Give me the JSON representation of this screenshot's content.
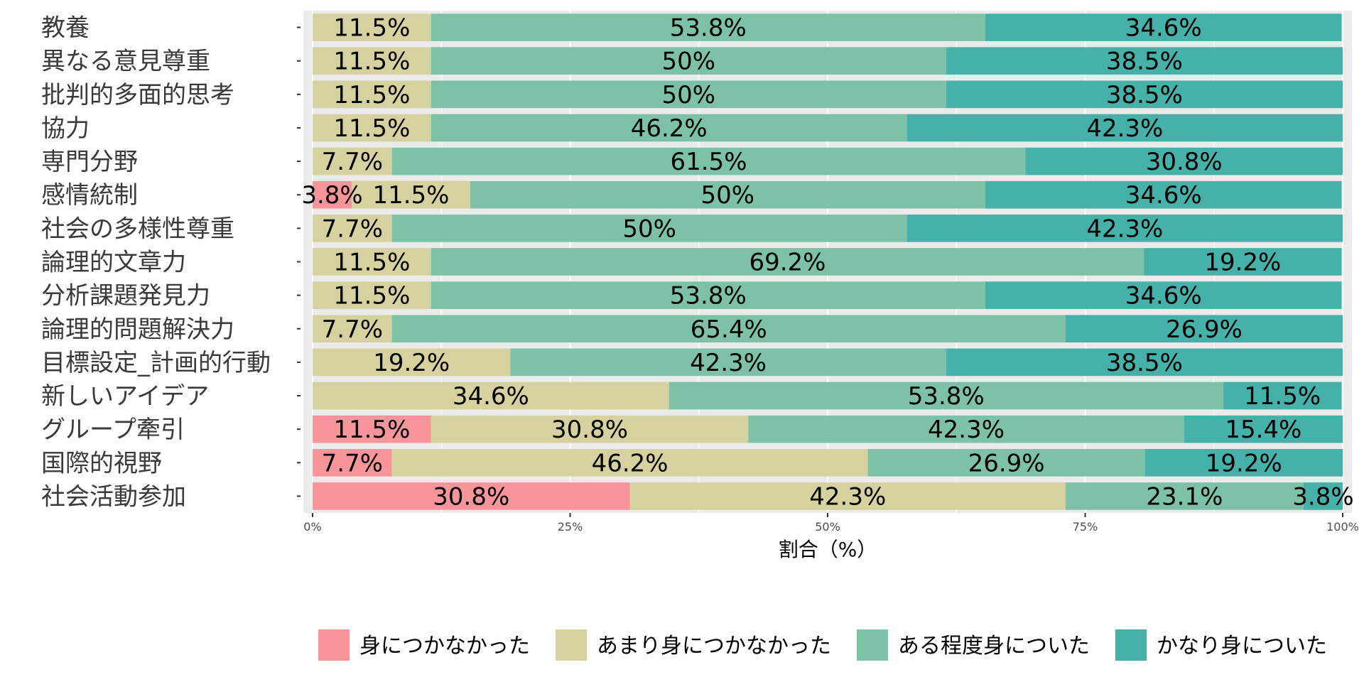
{
  "chart_data": {
    "type": "bar",
    "orientation": "horizontal",
    "stacked": true,
    "title": "",
    "xlabel": "割合（%）",
    "ylabel": "",
    "xlim": [
      0,
      100
    ],
    "xticks": [
      "0%",
      "25%",
      "50%",
      "75%",
      "100%"
    ],
    "grid": true,
    "legend_position": "bottom",
    "categories": [
      "教養",
      "異なる意見尊重",
      "批判的多面的思考",
      "協力",
      "専門分野",
      "感情統制",
      "社会の多様性尊重",
      "論理的文章力",
      "分析課題発見力",
      "論理的問題解決力",
      "目標設定_計画的行動",
      "新しいアイデア",
      "グループ牽引",
      "国際的視野",
      "社会活動参加"
    ],
    "series": [
      {
        "name": "身につかなかった",
        "color": "#F8959A",
        "values": [
          0,
          0,
          0,
          0,
          0,
          3.8,
          0,
          0,
          0,
          0,
          0,
          0,
          11.5,
          7.7,
          30.8
        ],
        "labels": [
          "",
          "",
          "",
          "",
          "",
          "3.8%",
          "",
          "",
          "",
          "",
          "",
          "",
          "11.5%",
          "7.7%",
          "30.8%"
        ]
      },
      {
        "name": "あまり身につかなかった",
        "color": "#D5D29F",
        "values": [
          11.5,
          11.5,
          11.5,
          11.5,
          7.7,
          11.5,
          7.7,
          11.5,
          11.5,
          7.7,
          19.2,
          34.6,
          30.8,
          46.2,
          42.3
        ],
        "labels": [
          "11.5%",
          "11.5%",
          "11.5%",
          "11.5%",
          "7.7%",
          "11.5%",
          "7.7%",
          "11.5%",
          "11.5%",
          "7.7%",
          "19.2%",
          "34.6%",
          "30.8%",
          "46.2%",
          "42.3%"
        ]
      },
      {
        "name": "ある程度身についた",
        "color": "#7DC1A7",
        "values": [
          53.8,
          50,
          50,
          46.2,
          61.5,
          50,
          50,
          69.2,
          53.8,
          65.4,
          42.3,
          53.8,
          42.3,
          26.9,
          23.1
        ],
        "labels": [
          "53.8%",
          "50%",
          "50%",
          "46.2%",
          "61.5%",
          "50%",
          "50%",
          "69.2%",
          "53.8%",
          "65.4%",
          "42.3%",
          "53.8%",
          "42.3%",
          "26.9%",
          "23.1%"
        ]
      },
      {
        "name": "かなり身についた",
        "color": "#46B1A8",
        "values": [
          34.6,
          38.5,
          38.5,
          42.3,
          30.8,
          34.6,
          42.3,
          19.2,
          34.6,
          26.9,
          38.5,
          11.5,
          15.4,
          19.2,
          3.8
        ],
        "labels": [
          "34.6%",
          "38.5%",
          "38.5%",
          "42.3%",
          "30.8%",
          "34.6%",
          "42.3%",
          "19.2%",
          "34.6%",
          "26.9%",
          "38.5%",
          "11.5%",
          "15.4%",
          "19.2%",
          "3.8%"
        ]
      }
    ],
    "colors": {
      "panel_background": "#EBEBEB",
      "gridline": "#FFFFFF"
    }
  }
}
